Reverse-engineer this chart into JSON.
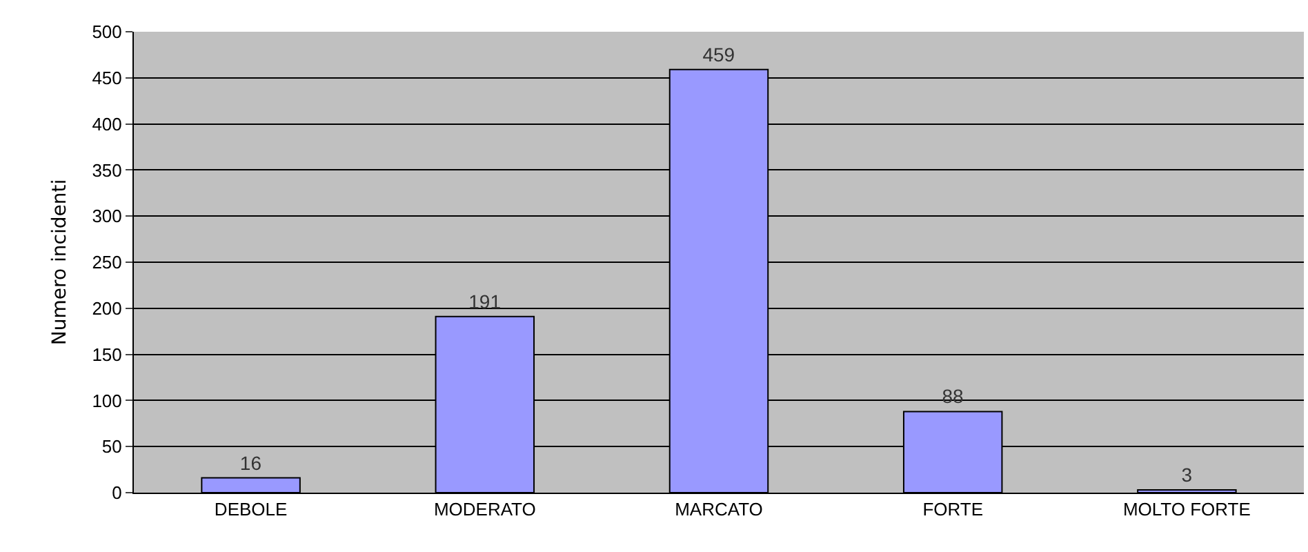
{
  "chart_data": {
    "type": "bar",
    "ylabel": "Numero incidenti",
    "categories": [
      "DEBOLE",
      "MODERATO",
      "MARCATO",
      "FORTE",
      "MOLTO FORTE"
    ],
    "values": [
      16,
      191,
      459,
      88,
      3
    ],
    "color": "#9999ff",
    "ylim": [
      0,
      500
    ],
    "yticks": [
      0,
      50,
      100,
      150,
      200,
      250,
      300,
      350,
      400,
      450,
      500
    ],
    "grid": "y",
    "data_labels": true
  }
}
